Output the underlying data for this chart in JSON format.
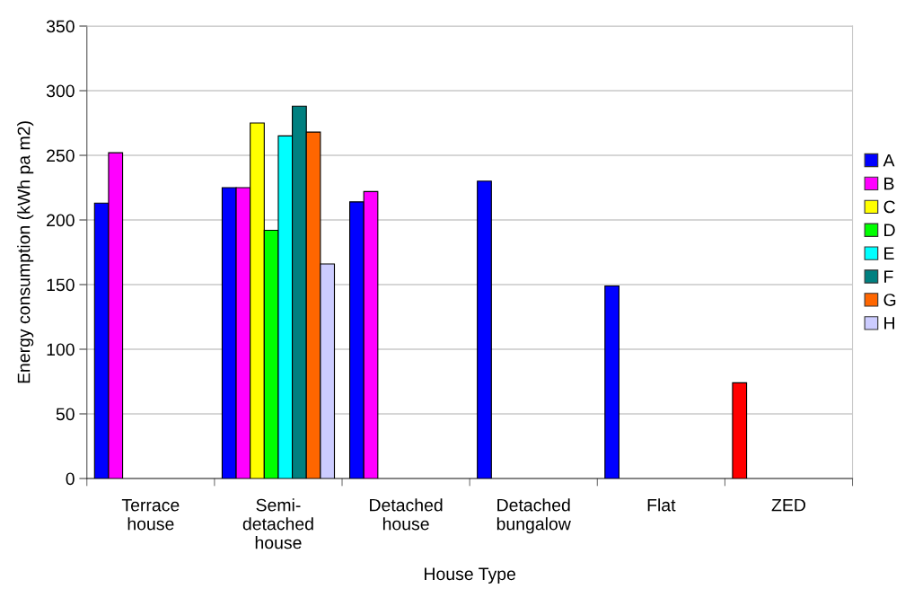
{
  "chart_data": {
    "type": "bar",
    "xlabel": "House Type",
    "ylabel": "Energy consumption (kWh pa m2)",
    "categories": [
      "Terrace\nhouse",
      "Semi-\ndetached\nhouse",
      "Detached\nhouse",
      "Detached\nbungalow",
      "Flat",
      "ZED"
    ],
    "series": [
      {
        "name": "A",
        "color": "#0000ff",
        "colors": [
          "#0000ff",
          "#0000ff",
          "#0000ff",
          "#0000ff",
          "#0000ff",
          "#ff0000"
        ],
        "values": [
          213,
          225,
          214,
          230,
          149,
          74
        ]
      },
      {
        "name": "B",
        "color": "#ff00ff",
        "values": [
          252,
          225,
          222,
          null,
          null,
          null
        ]
      },
      {
        "name": "C",
        "color": "#ffff00",
        "values": [
          null,
          275,
          null,
          null,
          null,
          null
        ]
      },
      {
        "name": "D",
        "color": "#00ff00",
        "values": [
          null,
          192,
          null,
          null,
          null,
          null
        ]
      },
      {
        "name": "E",
        "color": "#00ffff",
        "values": [
          null,
          265,
          null,
          null,
          null,
          null
        ]
      },
      {
        "name": "F",
        "color": "#008080",
        "values": [
          null,
          288,
          null,
          null,
          null,
          null
        ]
      },
      {
        "name": "G",
        "color": "#ff6600",
        "values": [
          null,
          268,
          null,
          null,
          null,
          null
        ]
      },
      {
        "name": "H",
        "color": "#ccccff",
        "values": [
          null,
          166,
          null,
          null,
          null,
          null
        ]
      }
    ],
    "ylim": [
      0,
      350
    ],
    "yticks": [
      0,
      50,
      100,
      150,
      200,
      250,
      300,
      350
    ],
    "grid": "y",
    "legend": "right"
  }
}
